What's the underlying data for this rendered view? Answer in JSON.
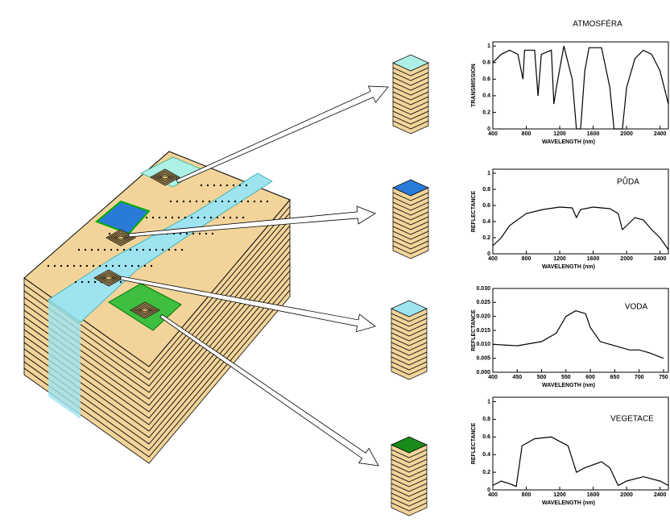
{
  "chart_data": [
    {
      "type": "line",
      "title": "ATMOSFÉRA",
      "ylabel": "TRANSMISSION",
      "xlabel": "WAVELENGTH (nm)",
      "x": [
        400,
        500,
        600,
        700,
        760,
        780,
        900,
        940,
        980,
        1100,
        1130,
        1160,
        1250,
        1350,
        1400,
        1450,
        1500,
        1550,
        1700,
        1800,
        1850,
        1950,
        2000,
        2100,
        2200,
        2300,
        2400,
        2500
      ],
      "values": [
        0.8,
        0.9,
        0.95,
        0.9,
        0.6,
        0.95,
        0.95,
        0.4,
        0.9,
        0.95,
        0.3,
        0.5,
        1,
        0.6,
        0,
        0,
        0.7,
        0.98,
        0.98,
        0.5,
        0,
        0,
        0.5,
        0.85,
        0.95,
        0.9,
        0.7,
        0.3
      ],
      "color": "#000000",
      "xlim": [
        400,
        2500
      ],
      "xticks": [
        400,
        800,
        1200,
        1600,
        2000,
        2400
      ],
      "ylim": [
        0,
        1.05
      ],
      "yticks": [
        0,
        0.2,
        0.4,
        0.6,
        0.8,
        1
      ]
    },
    {
      "type": "line",
      "title": "PŮDA",
      "ylabel": "REFLECTANCE",
      "xlabel": "WAVELENGTH (nm)",
      "x": [
        400,
        500,
        600,
        800,
        1000,
        1200,
        1350,
        1400,
        1450,
        1600,
        1800,
        1900,
        1950,
        2100,
        2200,
        2300,
        2400,
        2500
      ],
      "values": [
        0.1,
        0.2,
        0.35,
        0.5,
        0.55,
        0.58,
        0.57,
        0.45,
        0.55,
        0.58,
        0.56,
        0.5,
        0.3,
        0.45,
        0.42,
        0.3,
        0.2,
        0.05
      ],
      "color": "#000000",
      "xlim": [
        400,
        2500
      ],
      "xticks": [
        400,
        800,
        1200,
        1600,
        2000,
        2400
      ],
      "ylim": [
        0,
        1.05
      ],
      "yticks": [
        0,
        0.2,
        0.4,
        0.6,
        0.8,
        1
      ]
    },
    {
      "type": "line",
      "title": "VODA",
      "ylabel": "REFLECTANCE",
      "xlabel": "WAVELENGTH (nm)",
      "x": [
        400,
        450,
        500,
        530,
        550,
        570,
        590,
        600,
        620,
        650,
        680,
        700,
        720,
        750
      ],
      "values": [
        0.01,
        0.0095,
        0.011,
        0.014,
        0.02,
        0.022,
        0.021,
        0.016,
        0.011,
        0.0095,
        0.008,
        0.008,
        0.007,
        0.005
      ],
      "color": "#000000",
      "xlim": [
        400,
        760
      ],
      "xticks": [
        400,
        450,
        500,
        550,
        600,
        650,
        700,
        750
      ],
      "ylim": [
        0,
        0.03
      ],
      "yticks": [
        {
          "value": 0,
          "label": "0.000"
        },
        0.005,
        {
          "value": 0.01,
          "label": "0.010"
        },
        0.015,
        {
          "value": 0.02,
          "label": "0.020"
        },
        0.025,
        {
          "value": 0.03,
          "label": "0.030"
        }
      ]
    },
    {
      "type": "line",
      "title": "VEGETACE",
      "ylabel": "REFLECTANCE",
      "xlabel": "WAVELENGTH (nm)",
      "x": [
        400,
        500,
        600,
        680,
        750,
        900,
        1100,
        1200,
        1300,
        1400,
        1500,
        1700,
        1800,
        1900,
        2000,
        2200,
        2400,
        2500
      ],
      "values": [
        0.05,
        0.1,
        0.07,
        0.04,
        0.5,
        0.58,
        0.6,
        0.55,
        0.5,
        0.2,
        0.25,
        0.32,
        0.25,
        0.05,
        0.1,
        0.15,
        0.1,
        0.05
      ],
      "color": "#000000",
      "xlim": [
        400,
        2500
      ],
      "xticks": [
        400,
        800,
        1200,
        1600,
        2000,
        2400
      ],
      "ylim": [
        0,
        1.05
      ],
      "yticks": [
        0,
        0.2,
        0.4,
        0.6,
        0.8,
        1
      ]
    }
  ]
}
